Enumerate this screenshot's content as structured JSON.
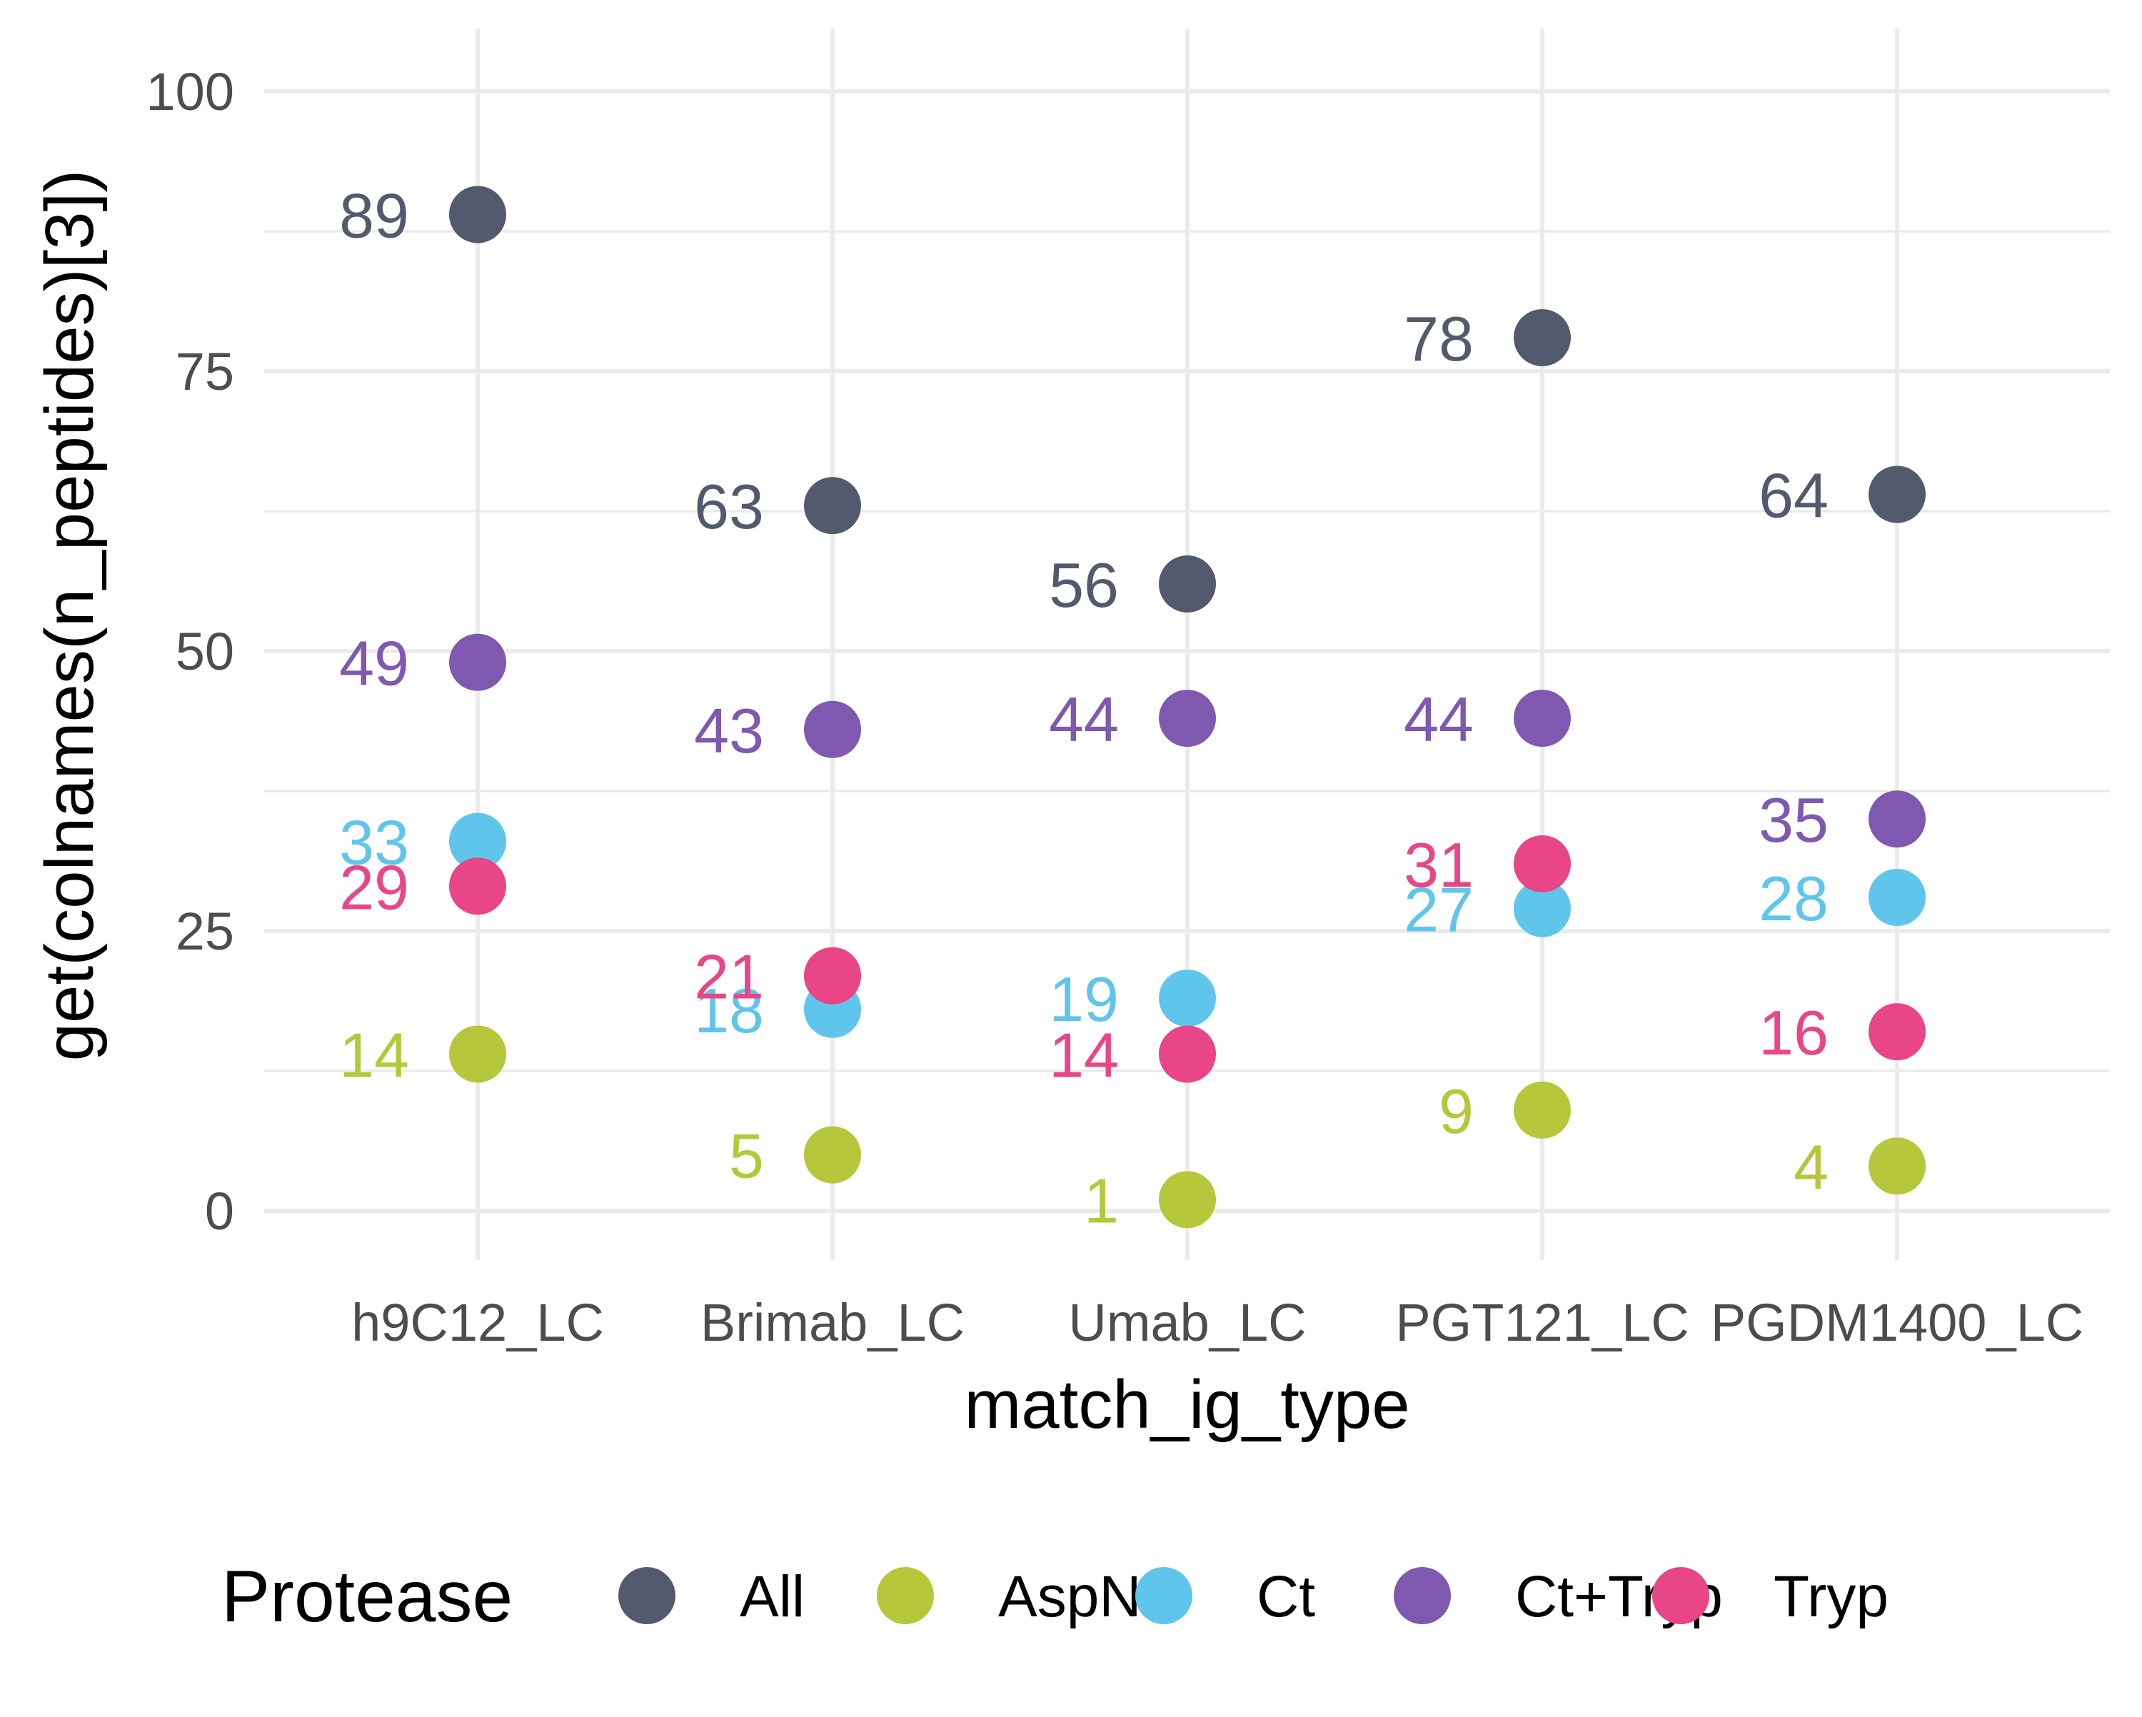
{
  "chart_data": {
    "type": "scatter",
    "title": "",
    "xlabel": "match_ig_type",
    "ylabel": "get(colnames(n_peptides)[3])",
    "categories": [
      "h9C12_LC",
      "Brimab_LC",
      "Umab_LC",
      "PGT121_LC",
      "PGDM1400_LC"
    ],
    "ylim": [
      -4,
      105
    ],
    "yticks": [
      0,
      25,
      50,
      75,
      100
    ],
    "grid": true,
    "legend": {
      "title": "Protease",
      "position": "bottom",
      "entries": [
        "All",
        "AspN",
        "Ct",
        "Ct+Tryp",
        "Tryp"
      ]
    },
    "series": [
      {
        "name": "All",
        "color": "#545a6e",
        "values": [
          89,
          63,
          56,
          78,
          64
        ]
      },
      {
        "name": "AspN",
        "color": "#b5c73a",
        "values": [
          14,
          5,
          1,
          9,
          4
        ]
      },
      {
        "name": "Ct",
        "color": "#5fc5eb",
        "values": [
          33,
          18,
          19,
          27,
          28
        ]
      },
      {
        "name": "Ct+Tryp",
        "color": "#7f58b0",
        "values": [
          49,
          43,
          44,
          44,
          35
        ]
      },
      {
        "name": "Tryp",
        "color": "#e84686",
        "values": [
          29,
          21,
          14,
          31,
          16
        ]
      }
    ]
  }
}
